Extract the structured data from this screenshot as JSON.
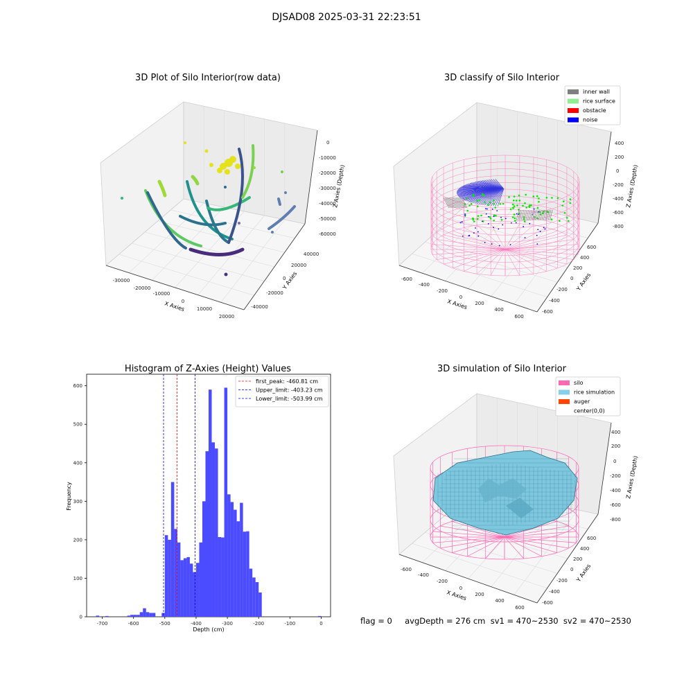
{
  "figure": {
    "suptitle": "DJSAD08 2025-03-31 22:23:51",
    "status_line": "flag = 0     avgDepth = 276 cm  sv1 = 470~2530  sv2 = 470~2530"
  },
  "panels": {
    "raw": {
      "title": "3D Plot of Silo Interior(row data)",
      "xlabel": "X Axies",
      "ylabel": "Y Axies",
      "zlabel": "Z Axies (Depth)",
      "xticks": [
        "-30000",
        "-20000",
        "-10000",
        "0",
        "10000",
        "20000"
      ],
      "yticks": [
        "-40000",
        "-20000",
        "0",
        "20000",
        "40000"
      ],
      "zticks": [
        "0",
        "-10000",
        "-20000",
        "-30000",
        "-40000",
        "-50000",
        "-60000"
      ]
    },
    "classify": {
      "title": "3D classify of Silo Interior",
      "xlabel": "X Axies",
      "ylabel": "Y Axies",
      "zlabel": "Z Axies (Depth)",
      "xticks": [
        "-600",
        "-400",
        "-200",
        "0",
        "200",
        "400",
        "600"
      ],
      "yticks": [
        "-600",
        "-400",
        "-200",
        "0",
        "200",
        "400",
        "600"
      ],
      "zticks": [
        "400",
        "200",
        "0",
        "-200",
        "-400",
        "-600",
        "-800"
      ],
      "legend": [
        {
          "label": "inner wall",
          "color": "#808080"
        },
        {
          "label": "rice surface",
          "color": "#90ee90"
        },
        {
          "label": "obstacle",
          "color": "#ff0000"
        },
        {
          "label": "noise",
          "color": "#0000ff"
        }
      ]
    },
    "simulation": {
      "title": "3D simulation of Silo Interior",
      "xlabel": "X Axies",
      "ylabel": "Y Axies",
      "zlabel": "Z Axies (Depth)",
      "xticks": [
        "-600",
        "-400",
        "-200",
        "0",
        "200",
        "400",
        "600"
      ],
      "yticks": [
        "-600",
        "-400",
        "-200",
        "0",
        "200",
        "400",
        "600"
      ],
      "zticks": [
        "400",
        "200",
        "0",
        "-200",
        "-400",
        "-600",
        "-800"
      ],
      "legend": [
        {
          "label": "silo",
          "color": "#ff69b4"
        },
        {
          "label": "rice simulation",
          "color": "#87ceeb"
        },
        {
          "label": "auger",
          "color": "#ff4500"
        },
        {
          "label": "center(0,0)",
          "color": "#ffffff"
        }
      ]
    }
  },
  "chart_data": {
    "type": "bar",
    "title": "Histogram of Z-Axies (Height) Values",
    "xlabel": "Depth (cm)",
    "ylabel": "Frequency",
    "xlim": [
      -750,
      30
    ],
    "ylim": [
      0,
      630
    ],
    "xticks": [
      -700,
      -600,
      -500,
      -400,
      -300,
      -200,
      -100,
      0
    ],
    "yticks": [
      0,
      100,
      200,
      300,
      400,
      500,
      600
    ],
    "bin_width": 10,
    "bins": [
      [
        -720,
        3
      ],
      [
        -690,
        2
      ],
      [
        -620,
        3
      ],
      [
        -610,
        5
      ],
      [
        -600,
        5
      ],
      [
        -590,
        5
      ],
      [
        -580,
        12
      ],
      [
        -570,
        22
      ],
      [
        -560,
        12
      ],
      [
        -550,
        10
      ],
      [
        -540,
        10
      ],
      [
        -510,
        10
      ],
      [
        -500,
        212
      ],
      [
        -490,
        200
      ],
      [
        -480,
        350
      ],
      [
        -470,
        228
      ],
      [
        -460,
        193
      ],
      [
        -450,
        147
      ],
      [
        -440,
        152
      ],
      [
        -430,
        155
      ],
      [
        -420,
        138
      ],
      [
        -410,
        116
      ],
      [
        -400,
        140
      ],
      [
        -390,
        193
      ],
      [
        -380,
        300
      ],
      [
        -370,
        430
      ],
      [
        -360,
        590
      ],
      [
        -350,
        453
      ],
      [
        -340,
        437
      ],
      [
        -330,
        207
      ],
      [
        -320,
        206
      ],
      [
        -310,
        595
      ],
      [
        -300,
        318
      ],
      [
        -290,
        298
      ],
      [
        -280,
        278
      ],
      [
        -270,
        248
      ],
      [
        -260,
        296
      ],
      [
        -250,
        221
      ],
      [
        -240,
        222
      ],
      [
        -230,
        125
      ],
      [
        -220,
        102
      ],
      [
        -210,
        90
      ],
      [
        -200,
        63
      ],
      [
        -10,
        2
      ]
    ],
    "vlines": [
      {
        "label": "first_peak: -460.81 cm",
        "x": -460.81,
        "color": "#ff0000"
      },
      {
        "label": "Upper_limit: -403.23 cm",
        "x": -403.23,
        "color": "#0000ff"
      },
      {
        "label": "Lower_limit: -503.99 cm",
        "x": -503.99,
        "color": "#0000ff"
      }
    ],
    "bar_color": "#4b4bff"
  }
}
